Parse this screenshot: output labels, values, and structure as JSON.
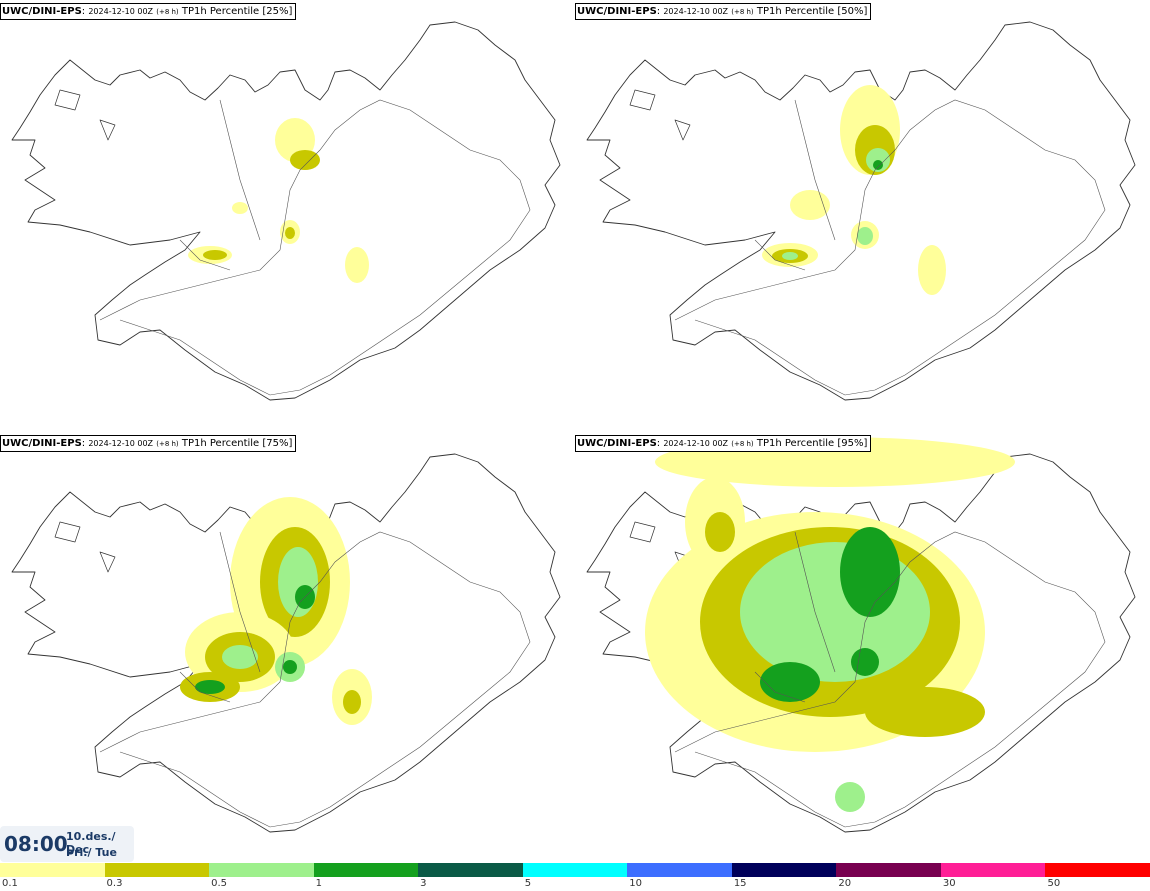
{
  "panels": [
    {
      "model": "UWC/DINI-EPS",
      "run": "2024-12-10 00Z",
      "lead": "(+8 h)",
      "product": "TP1h Percentile [25%]"
    },
    {
      "model": "UWC/DINI-EPS",
      "run": "2024-12-10 00Z",
      "lead": "(+8 h)",
      "product": "TP1h Percentile [50%]"
    },
    {
      "model": "UWC/DINI-EPS",
      "run": "2024-12-10 00Z",
      "lead": "(+8 h)",
      "product": "TP1h Percentile [75%]"
    },
    {
      "model": "UWC/DINI-EPS",
      "run": "2024-12-10 00Z",
      "lead": "(+8 h)",
      "product": "TP1h Percentile [95%]"
    }
  ],
  "valid": {
    "time": "08:00",
    "date": "10.des./ Dec",
    "day": "Þri./ Tue"
  },
  "legend": {
    "colors": [
      "#ffff9a",
      "#c8c800",
      "#9ef08c",
      "#14a01e",
      "#0a5a46",
      "#00ffff",
      "#3c6eff",
      "#00005a",
      "#780050",
      "#ff1e96",
      "#ff0000"
    ],
    "ticks": [
      "0.1",
      "0.3",
      "0.5",
      "1",
      "3",
      "5",
      "10",
      "15",
      "20",
      "30",
      "50"
    ]
  }
}
